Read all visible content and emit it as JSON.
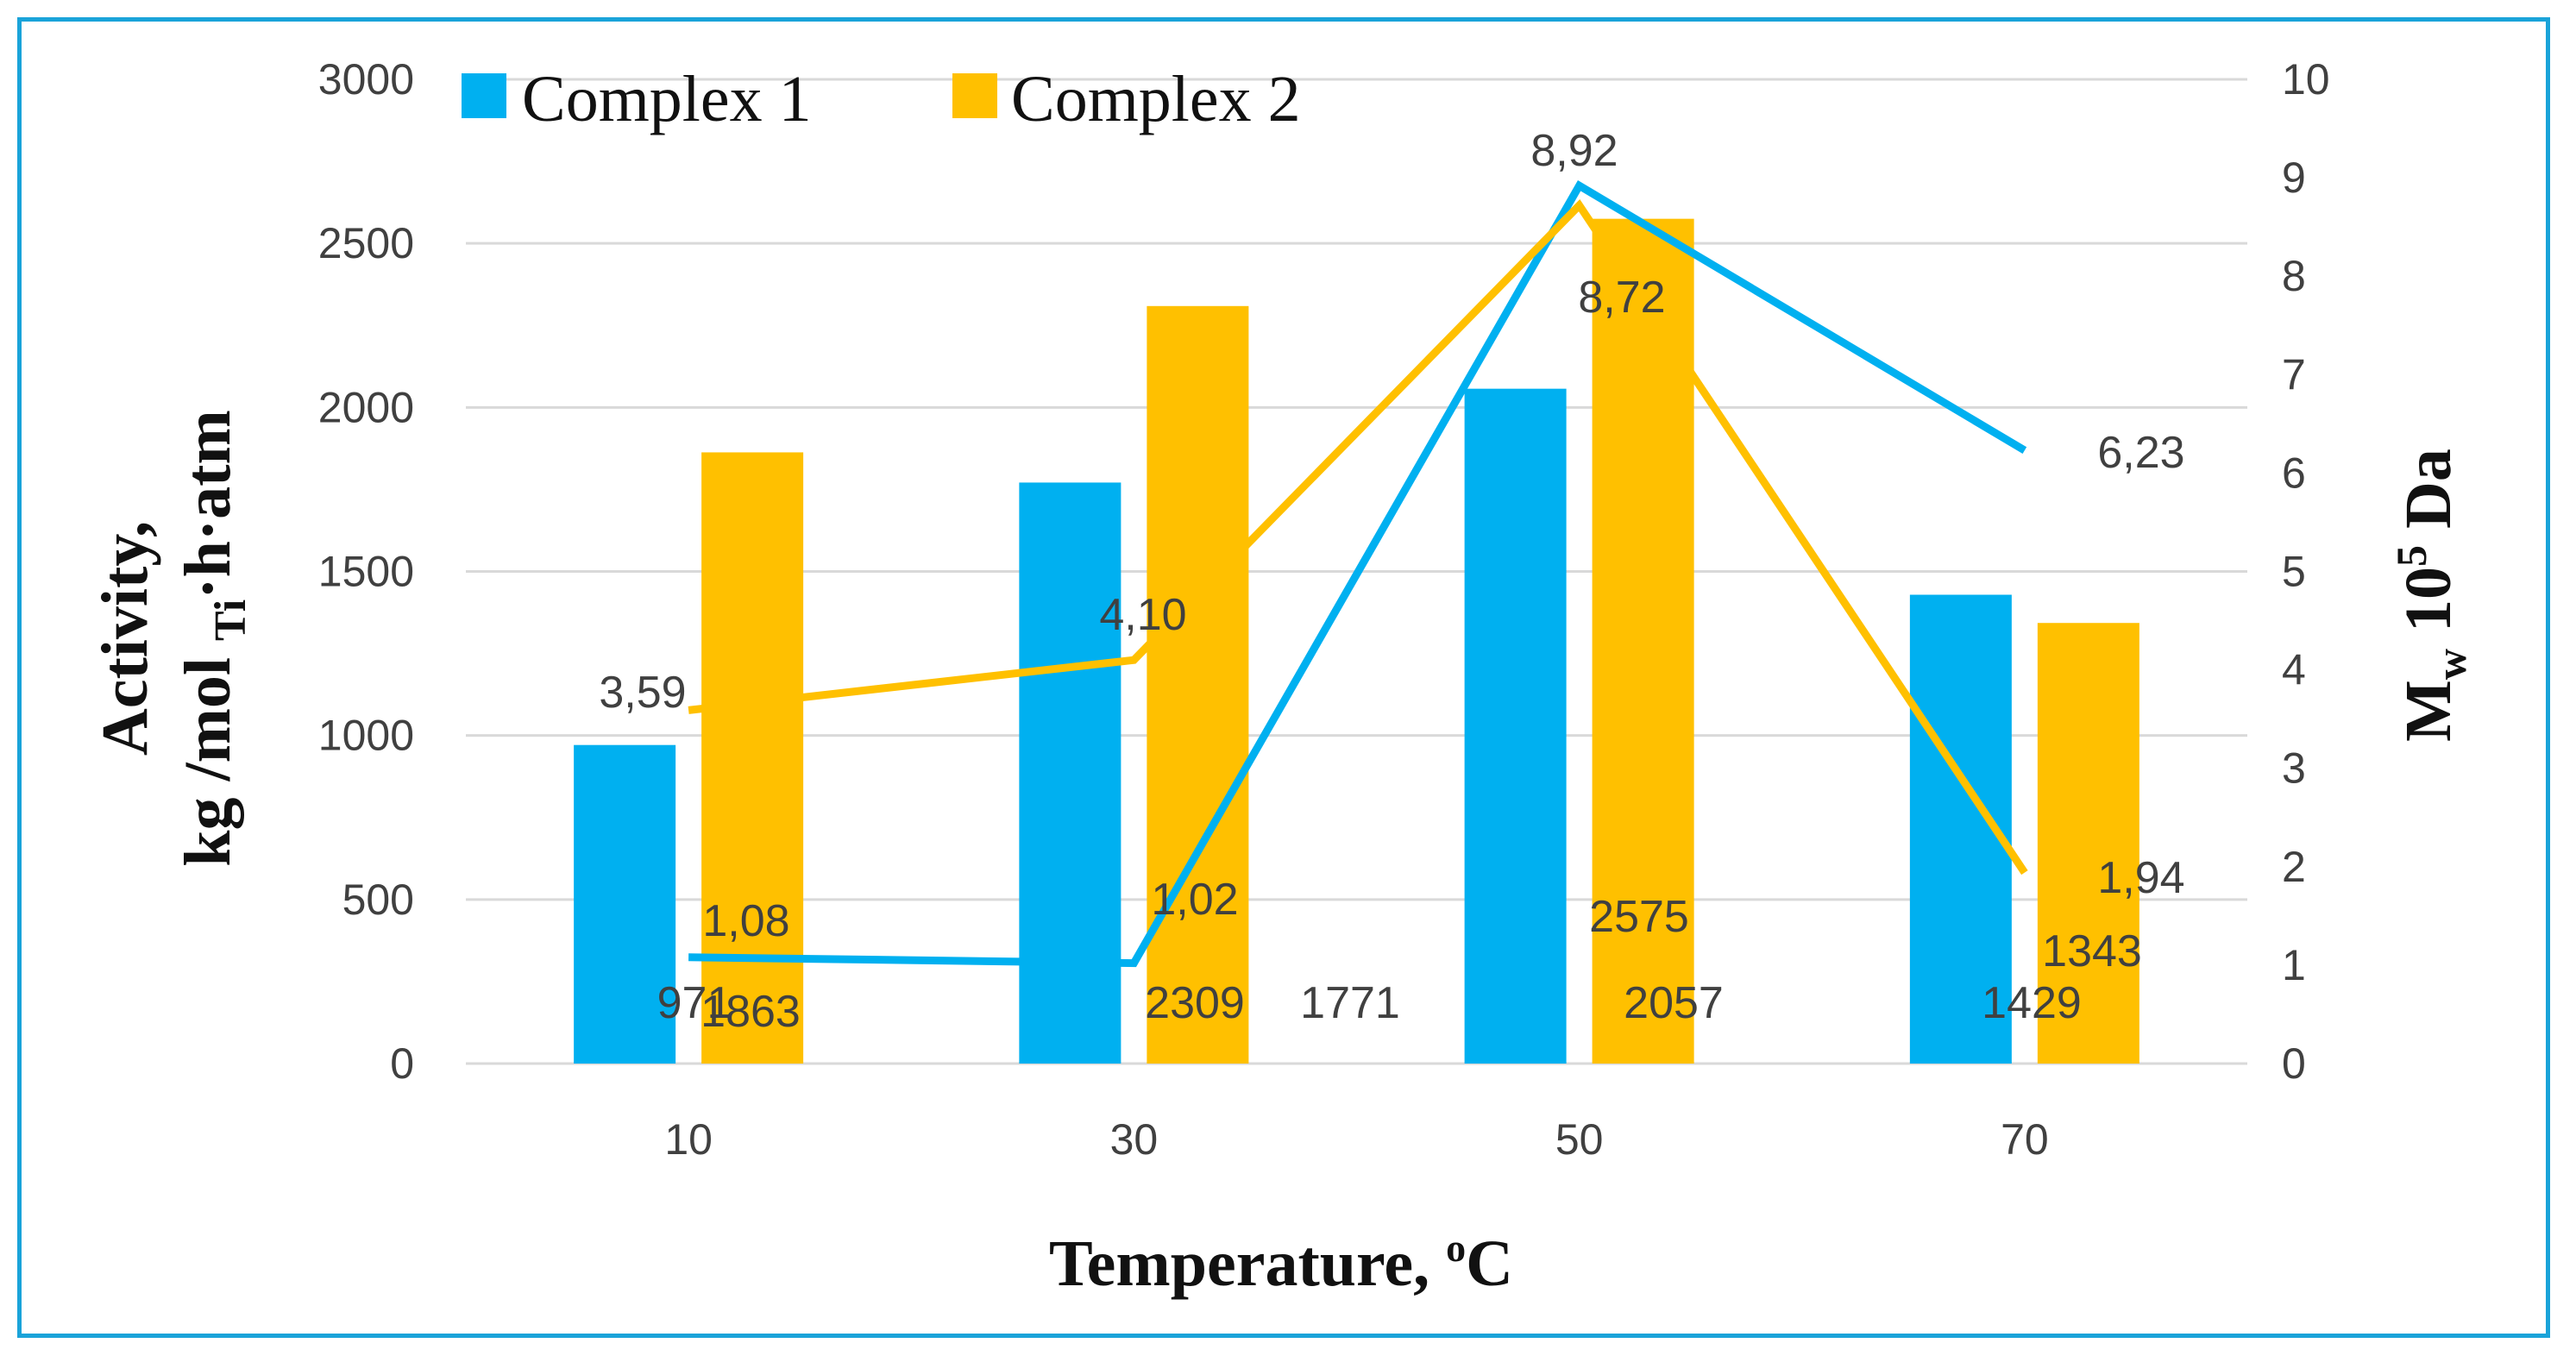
{
  "chart_data": {
    "type": "bar",
    "xlabel": "Temperature, ",
    "xlabel_sup": "o",
    "xlabel_unit": "C",
    "ylabel_line1": "Activity,",
    "ylabel_line2_pre": "kg /mol ",
    "ylabel_line2_sub": "Ti",
    "ylabel_line2_post": "·h·atm",
    "y2label_pre": "M",
    "y2label_sub": "w",
    "y2label_mid": " 10",
    "y2label_sup": "5",
    "y2label_post": " Da",
    "categories": [
      "10",
      "30",
      "50",
      "70"
    ],
    "ylim": [
      0,
      3000
    ],
    "yticks": [
      "0",
      "500",
      "1000",
      "1500",
      "2000",
      "2500",
      "3000"
    ],
    "y2lim": [
      0,
      10
    ],
    "y2ticks": [
      "0",
      "1",
      "2",
      "3",
      "4",
      "5",
      "6",
      "7",
      "8",
      "9",
      "10"
    ],
    "legend": [
      "Complex 1",
      "Complex 2"
    ],
    "legend_position": "top-left",
    "grid": true,
    "series": [
      {
        "name": "Complex 1",
        "kind": "bar",
        "color": "#00b0f0",
        "values": [
          971,
          1771,
          2057,
          1429
        ],
        "labels": [
          "971",
          "1771",
          "2057",
          "1429"
        ]
      },
      {
        "name": "Complex 2",
        "kind": "bar",
        "color": "#ffc000",
        "values": [
          1863,
          2309,
          2575,
          1343
        ],
        "labels": [
          "1863",
          "2309",
          "2575",
          "1343"
        ]
      }
    ],
    "lines": [
      {
        "name": "Complex 1 Mw",
        "axis": "right",
        "color": "#00b0f0",
        "values": [
          1.08,
          1.02,
          8.92,
          6.23
        ],
        "labels": [
          "1,08",
          "1,02",
          "8,92",
          "6,23"
        ]
      },
      {
        "name": "Complex 2 Mw",
        "axis": "right",
        "color": "#ffc000",
        "values": [
          3.59,
          4.1,
          8.72,
          1.94
        ],
        "labels": [
          "3,59",
          "4,10",
          "8,72",
          "1,94"
        ]
      }
    ]
  }
}
